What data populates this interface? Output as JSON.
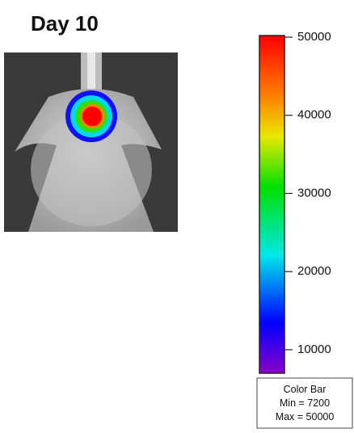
{
  "title": "Day 10",
  "colorbar": {
    "lim": [
      7200,
      50000
    ],
    "ticks": [
      10000,
      20000,
      30000,
      40000,
      50000
    ]
  },
  "legend": {
    "lines": [
      "Color Bar",
      "Min = 7200",
      "Max = 50000"
    ]
  }
}
